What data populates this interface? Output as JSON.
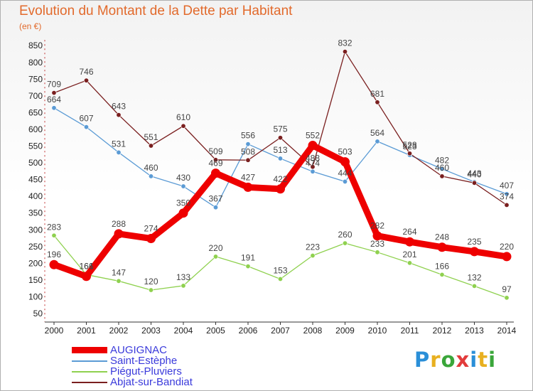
{
  "header": {
    "title": "Evolution du Montant de la Dette par Habitant",
    "subtitle": "(en €)"
  },
  "logo": {
    "letters": [
      "P",
      "r",
      "o",
      "x",
      "i",
      "t",
      "i"
    ],
    "colors": [
      "#2a8fd8",
      "#e8b020",
      "#3aa63a",
      "#e23b3b",
      "#2a8fd8",
      "#e8b020",
      "#3aa63a"
    ]
  },
  "chart_data": {
    "type": "line",
    "title": "Evolution du Montant de la Dette par Habitant",
    "subtitle": "(en €)",
    "xlabel": "",
    "ylabel": "",
    "ylim": [
      50,
      850
    ],
    "yticks": [
      50,
      100,
      150,
      200,
      250,
      300,
      350,
      400,
      450,
      500,
      550,
      600,
      650,
      700,
      750,
      800,
      850
    ],
    "grid": false,
    "legend_position": "bottom-left",
    "x": [
      "2000",
      "2001",
      "2002",
      "2003",
      "2004",
      "2005",
      "2006",
      "2007",
      "2008",
      "2009",
      "2010",
      "2011",
      "2012",
      "2013",
      "2014"
    ],
    "series": [
      {
        "name": "AUGIGNAC",
        "color": "#ee0000",
        "emphasis": true,
        "values": [
          196,
          161,
          288,
          274,
          350,
          469,
          427,
          422,
          552,
          503,
          282,
          264,
          248,
          235,
          220
        ],
        "labels": [
          "196",
          "161",
          "288",
          "274",
          "350",
          "469",
          "427",
          "422",
          "552",
          "503",
          "282",
          "264",
          "248",
          "235",
          "220"
        ]
      },
      {
        "name": "Saint-Estèphe",
        "color": "#5b9bd5",
        "values": [
          664,
          607,
          531,
          460,
          430,
          367,
          556,
          513,
          474,
          444,
          564,
          523,
          482,
          443,
          407
        ],
        "labels": [
          "664",
          "607",
          "531",
          "460",
          "430",
          "367",
          "556",
          "513",
          "474",
          "444",
          "564",
          "523",
          "482",
          "443",
          "407"
        ]
      },
      {
        "name": "Piégut-Pluviers",
        "color": "#8fd14f",
        "values": [
          283,
          166,
          147,
          120,
          133,
          220,
          191,
          153,
          223,
          260,
          233,
          201,
          166,
          132,
          97
        ],
        "labels": [
          "283",
          "166",
          "147",
          "120",
          "133",
          "220",
          "191",
          "153",
          "223",
          "260",
          "233",
          "201",
          "166",
          "132",
          "97"
        ]
      },
      {
        "name": "Abjat-sur-Bandiat",
        "color": "#7a1f1f",
        "values": [
          709,
          746,
          643,
          551,
          610,
          509,
          508,
          575,
          488,
          832,
          681,
          528,
          460,
          440,
          374
        ],
        "labels": [
          "709",
          "746",
          "643",
          "551",
          "610",
          "509",
          "508",
          "575",
          "488",
          "832",
          "681",
          "528",
          "460",
          "440",
          "374"
        ]
      }
    ]
  }
}
